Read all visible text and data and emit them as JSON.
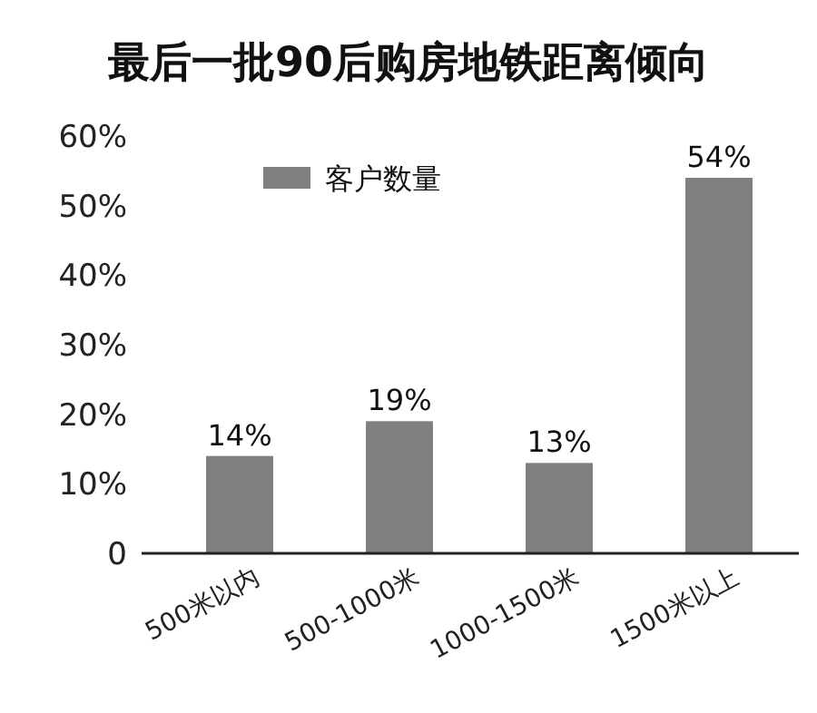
{
  "chart_data": {
    "type": "bar",
    "title": "最后一批90后购房地铁距离倾向",
    "categories": [
      "500米以内",
      "500-1000米",
      "1000-1500米",
      "1500米以上"
    ],
    "series": [
      {
        "name": "客户数量",
        "color": "#7f7f7f",
        "values": [
          14,
          19,
          13,
          54
        ],
        "value_labels": [
          "14%",
          "19%",
          "13%",
          "54%"
        ]
      }
    ],
    "ylim": [
      0,
      60
    ],
    "yticks": [
      0,
      {
        "value": 10,
        "label": "10%"
      },
      {
        "value": 20,
        "label": "20%"
      },
      {
        "value": 30,
        "label": "30%"
      },
      {
        "value": 40,
        "label": "40%"
      },
      {
        "value": 50,
        "label": "50%"
      },
      {
        "value": 60,
        "label": "60%"
      }
    ],
    "grid": false,
    "legend": "top"
  }
}
